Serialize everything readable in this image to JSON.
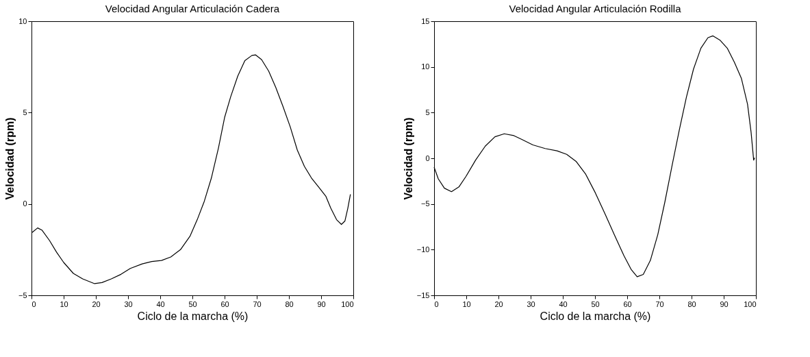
{
  "chart_data": [
    {
      "type": "line",
      "title": "Velocidad Angular Articulación Cadera",
      "xlabel": "Ciclo de la marcha (%)",
      "ylabel": "Velocidad (rpm)",
      "color": "#000000",
      "grid": false,
      "line_style": "solid",
      "xlim": [
        0,
        100
      ],
      "xticks": [
        0,
        10,
        20,
        30,
        40,
        50,
        60,
        70,
        80,
        90,
        100
      ],
      "ylim": [
        -5,
        10
      ],
      "yticks": [
        -5,
        0,
        5,
        10
      ],
      "x": [
        0.2,
        1.9,
        3.3,
        5.6,
        7.8,
        10,
        13,
        15.9,
        19.6,
        21.9,
        24.8,
        27.8,
        30.7,
        34.4,
        37.4,
        40.4,
        43.3,
        46.3,
        49.3,
        51.5,
        53.7,
        55.9,
        58.1,
        60,
        61.9,
        64.1,
        66.3,
        68.5,
        69.6,
        71.5,
        73.7,
        75.9,
        78.1,
        80.4,
        82.6,
        84.8,
        87,
        89.3,
        91.5,
        93,
        94.8,
        96.3,
        97.4,
        98.3,
        99.1
      ],
      "values": [
        -1.56,
        -1.31,
        -1.44,
        -2.0,
        -2.64,
        -3.2,
        -3.8,
        -4.1,
        -4.36,
        -4.3,
        -4.1,
        -3.85,
        -3.53,
        -3.28,
        -3.15,
        -3.09,
        -2.9,
        -2.5,
        -1.75,
        -0.86,
        0.15,
        1.42,
        3.07,
        4.73,
        5.87,
        7.0,
        7.84,
        8.13,
        8.16,
        7.9,
        7.27,
        6.38,
        5.36,
        4.22,
        2.95,
        2.06,
        1.42,
        0.91,
        0.41,
        -0.23,
        -0.86,
        -1.12,
        -0.93,
        -0.23,
        0.53
      ]
    },
    {
      "type": "line",
      "title": "Velocidad Angular Articulación Rodilla",
      "xlabel": "Ciclo de la marcha (%)",
      "ylabel": "Velocidad (rpm)",
      "color": "#000000",
      "grid": false,
      "line_style": "solid",
      "xlim": [
        0,
        100
      ],
      "xticks": [
        0,
        10,
        20,
        30,
        40,
        50,
        60,
        70,
        80,
        90,
        100
      ],
      "ylim": [
        -15,
        15
      ],
      "yticks": [
        -15,
        -10,
        -5,
        0,
        5,
        10,
        15
      ],
      "x": [
        0,
        1.3,
        3.2,
        5.4,
        7.7,
        9.9,
        12.9,
        15.9,
        18.9,
        21.8,
        24.8,
        27.8,
        30.7,
        34.5,
        38.2,
        41.2,
        44.1,
        47.1,
        50.1,
        53.1,
        56,
        59,
        61.3,
        63.1,
        65,
        67.2,
        69.5,
        71.7,
        74,
        76.2,
        78.4,
        80.6,
        82.9,
        85.1,
        86.6,
        88.8,
        91.1,
        93.3,
        95.5,
        97.4,
        98.5,
        99.3,
        99.6
      ],
      "values": [
        -0.97,
        -2.25,
        -3.27,
        -3.65,
        -3.14,
        -1.99,
        -0.2,
        1.33,
        2.35,
        2.68,
        2.48,
        1.97,
        1.46,
        1.07,
        0.82,
        0.43,
        -0.33,
        -1.74,
        -3.78,
        -6.08,
        -8.37,
        -10.67,
        -12.2,
        -12.97,
        -12.71,
        -11.18,
        -8.37,
        -4.8,
        -0.71,
        3.11,
        6.69,
        9.75,
        12.05,
        13.2,
        13.4,
        12.94,
        12.05,
        10.52,
        8.73,
        5.92,
        2.86,
        -0.2,
        0.05
      ]
    }
  ]
}
